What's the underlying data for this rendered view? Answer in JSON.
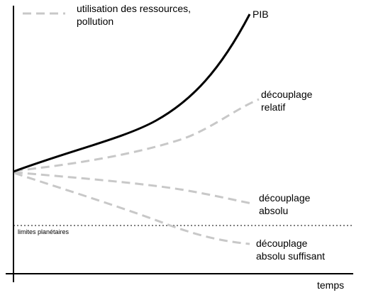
{
  "legend": {
    "line1": "utilisation des ressources,",
    "line2": "pollution"
  },
  "labels": {
    "pib": "PIB",
    "relatif_1": "découplage",
    "relatif_2": "relatif",
    "absolu_1": "découplage",
    "absolu_2": "absolu",
    "suffisant_1": "découplage",
    "suffisant_2": "absolu suffisant",
    "limits": "limites planétaires",
    "x_axis": "temps"
  },
  "colors": {
    "axis": "#000000",
    "pib": "#000000",
    "decoupling": "#c8c8c8",
    "limits": "#000000"
  }
}
